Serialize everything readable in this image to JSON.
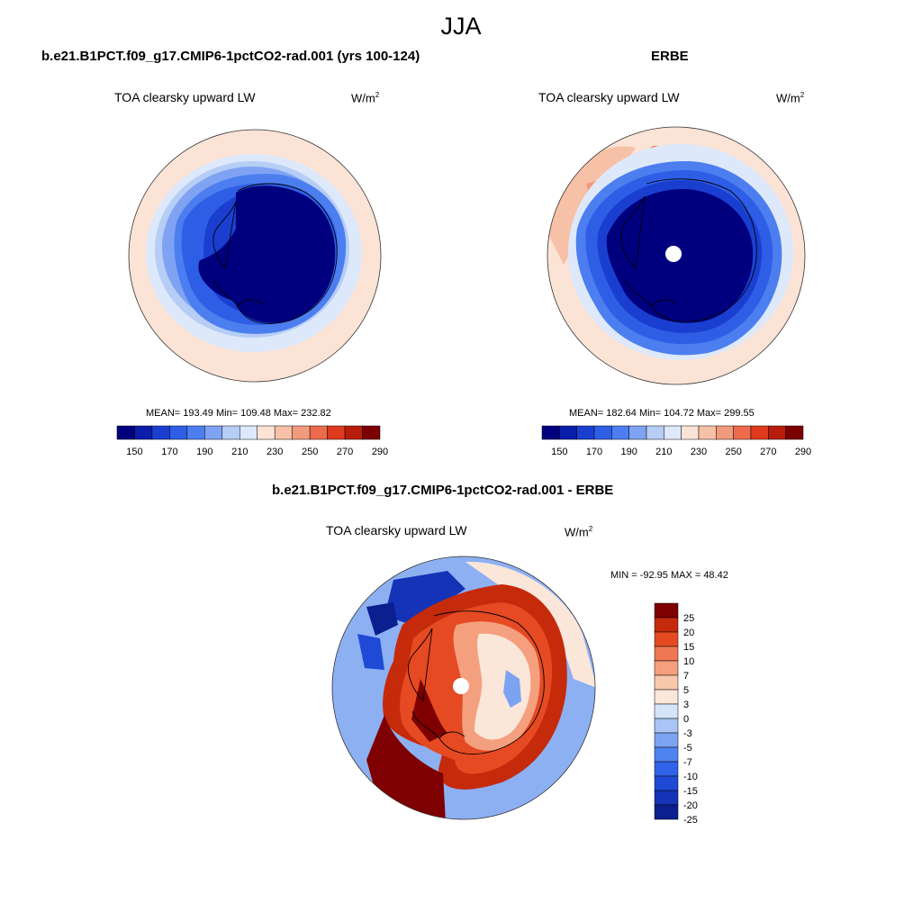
{
  "season": "JJA",
  "colors": {
    "abs_scale": [
      "#00007f",
      "#0a1dab",
      "#1a3fd0",
      "#2f5ee6",
      "#4c7ef0",
      "#7fa3f2",
      "#b6cdf5",
      "#dde9fb",
      "#fbe3d6",
      "#f7c1a7",
      "#f29a7d",
      "#ec6b4d",
      "#e03a1e",
      "#b81d0c",
      "#7c0000"
    ],
    "diff_scale": [
      "#0b1f8f",
      "#1433b6",
      "#1f4ad6",
      "#2f63ea",
      "#4f83f0",
      "#7ca3f2",
      "#a9c4f5",
      "#d6e4fa",
      "#fbe6da",
      "#f8c8ad",
      "#f4a07f",
      "#ef7752",
      "#e54a22",
      "#c52a0b",
      "#7f0000"
    ]
  },
  "panels": {
    "top_left": {
      "title": "b.e21.B1PCT.f09_g17.CMIP6-1pctCO2-rad.001 (yrs 100-124)",
      "variable": "TOA clearsky upward LW",
      "units_base": "W/m",
      "units_exp": "2",
      "stats": "MEAN= 193.49  Min= 109.48  Max= 232.82"
    },
    "top_right": {
      "title": "ERBE",
      "variable": "TOA clearsky upward LW",
      "units_base": "W/m",
      "units_exp": "2",
      "stats": "MEAN= 182.64  Min= 104.72  Max= 299.55"
    },
    "bottom": {
      "title": "b.e21.B1PCT.f09_g17.CMIP6-1pctCO2-rad.001 - ERBE",
      "variable": "TOA clearsky upward LW",
      "units_base": "W/m",
      "units_exp": "2",
      "stats": "MIN = -92.95 MAX =  48.42"
    }
  },
  "chart_data": [
    {
      "type": "heatmap",
      "projection": "south polar stereographic",
      "title": "b.e21.B1PCT.f09_g17.CMIP6-1pctCO2-rad.001 (yrs 100-124)",
      "variable": "TOA clearsky upward LW",
      "units": "W/m2",
      "mean": 193.49,
      "min": 109.48,
      "max": 232.82,
      "colorbar_labels": [
        "150",
        "170",
        "190",
        "210",
        "230",
        "250",
        "270",
        "290"
      ]
    },
    {
      "type": "heatmap",
      "projection": "south polar stereographic",
      "title": "ERBE",
      "variable": "TOA clearsky upward LW",
      "units": "W/m2",
      "mean": 182.64,
      "min": 104.72,
      "max": 299.55,
      "colorbar_labels": [
        "150",
        "170",
        "190",
        "210",
        "230",
        "250",
        "270",
        "290"
      ]
    },
    {
      "type": "heatmap",
      "projection": "south polar stereographic",
      "title": "b.e21.B1PCT.f09_g17.CMIP6-1pctCO2-rad.001 - ERBE",
      "variable": "TOA clearsky upward LW",
      "units": "W/m2",
      "min": -92.95,
      "max": 48.42,
      "colorbar_labels": [
        "25",
        "20",
        "15",
        "10",
        "7",
        "5",
        "3",
        "0",
        "-3",
        "-5",
        "-7",
        "-10",
        "-15",
        "-20",
        "-25"
      ]
    }
  ]
}
